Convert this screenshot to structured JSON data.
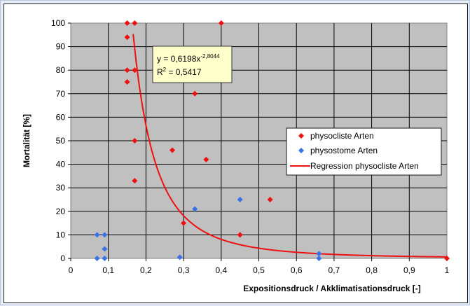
{
  "chart_data": {
    "type": "scatter",
    "xlabel": "Expositionsdruck / Akklimatisationsdruck [-]",
    "ylabel": "Mortalität [%]",
    "xlim": [
      0,
      1
    ],
    "ylim": [
      0,
      100
    ],
    "x_ticks": [
      "0",
      "0,1",
      "0,2",
      "0,3",
      "0,4",
      "0,5",
      "0,6",
      "0,7",
      "0,8",
      "0,9",
      "1"
    ],
    "y_ticks": [
      "0",
      "10",
      "20",
      "30",
      "40",
      "50",
      "60",
      "70",
      "80",
      "90",
      "100"
    ],
    "grid": true,
    "plot_background": "#c0c0c0",
    "legend_position": "right",
    "series": [
      {
        "name": "physocliste Arten",
        "color": "#ee1111",
        "marker": "diamond",
        "points": [
          [
            0.15,
            100
          ],
          [
            0.17,
            100
          ],
          [
            0.4,
            100
          ],
          [
            0.15,
            94
          ],
          [
            0.15,
            80
          ],
          [
            0.17,
            80
          ],
          [
            0.15,
            75
          ],
          [
            0.33,
            70
          ],
          [
            0.17,
            50
          ],
          [
            0.27,
            46
          ],
          [
            0.36,
            42
          ],
          [
            0.17,
            33
          ],
          [
            0.53,
            25
          ],
          [
            0.3,
            15
          ],
          [
            0.45,
            10
          ],
          [
            1.0,
            0
          ]
        ]
      },
      {
        "name": "physostome Arten",
        "color": "#3b73e6",
        "marker": "diamond",
        "points": [
          [
            0.07,
            10
          ],
          [
            0.09,
            10
          ],
          [
            0.09,
            4
          ],
          [
            0.07,
            0
          ],
          [
            0.09,
            0
          ],
          [
            0.29,
            0.5
          ],
          [
            0.33,
            21
          ],
          [
            0.45,
            25
          ],
          [
            0.66,
            2
          ],
          [
            0.66,
            0
          ]
        ]
      }
    ],
    "regression": {
      "name": "Regression physocliste Arten",
      "color": "#ee1111",
      "coefficient": 0.6198,
      "exponent": -2.8044,
      "x_range": [
        0.166,
        1.0
      ]
    },
    "annotation": {
      "equation_prefix": "y = 0,6198x",
      "equation_exponent": "-2,8044",
      "r2_prefix": "R",
      "r2_superscript": "2",
      "r2_value": " = 0,5417"
    }
  }
}
